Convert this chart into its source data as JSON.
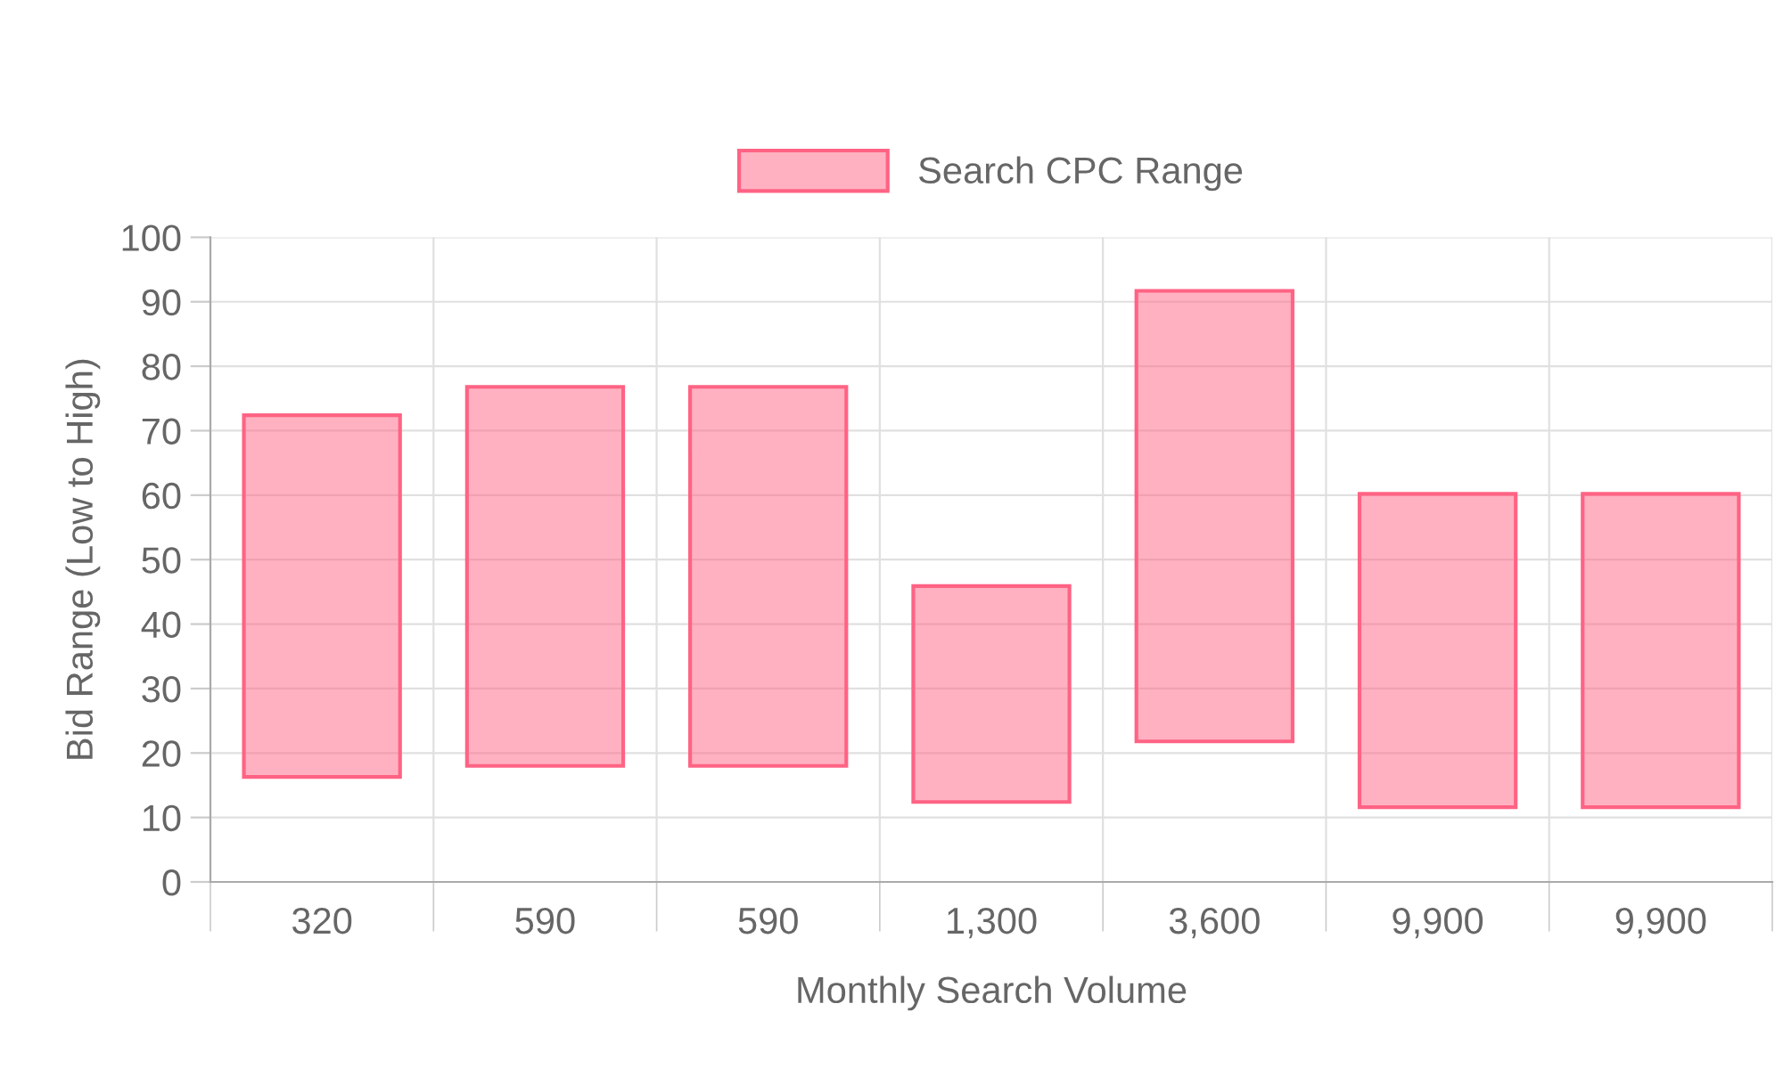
{
  "chart_data": {
    "type": "bar",
    "xlabel": "Monthly Search Volume",
    "ylabel": "Bid Range (Low to High)",
    "categories": [
      "320",
      "590",
      "590",
      "1,300",
      "3,600",
      "9,900",
      "9,900"
    ],
    "series": [
      {
        "name": "Search CPC Range",
        "color": "#ff6384",
        "values": [
          56.1,
          58.8,
          58.8,
          33.5,
          69.9,
          48.6,
          48.6
        ],
        "base": [
          16.3,
          18.0,
          18.0,
          12.4,
          21.8,
          11.6,
          11.6
        ]
      }
    ],
    "ylim": [
      0,
      100
    ],
    "yticks": [
      0,
      10,
      20,
      30,
      40,
      50,
      60,
      70,
      80,
      90,
      100
    ],
    "grid": true,
    "legend": "top"
  }
}
